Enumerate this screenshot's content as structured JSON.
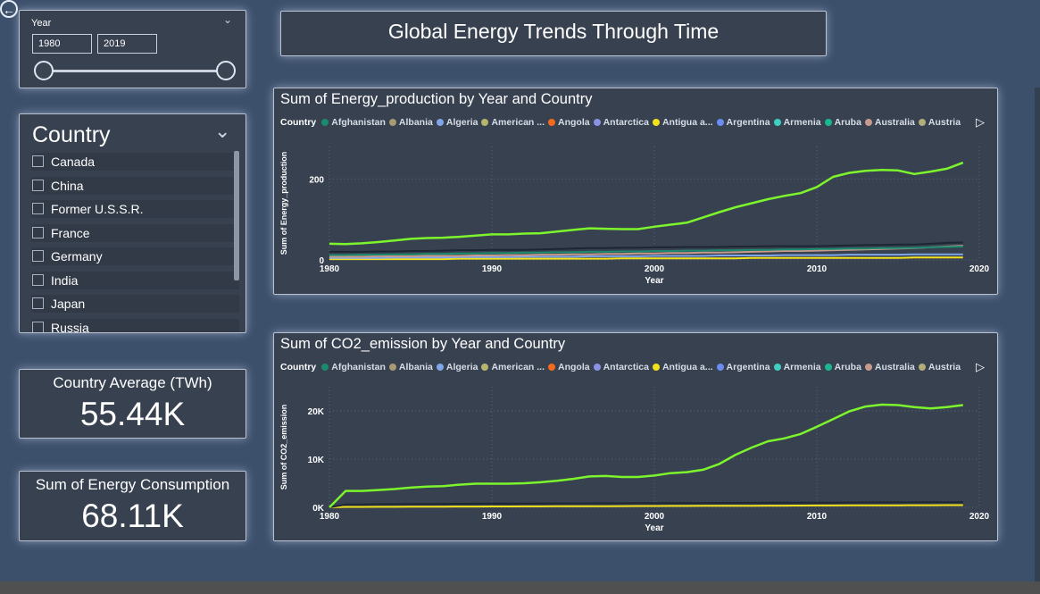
{
  "title": "Global Energy Trends Through Time",
  "back_icon": "arrow-left-circle",
  "year_slicer": {
    "label": "Year",
    "from": "1980",
    "to": "2019"
  },
  "country_slicer": {
    "label": "Country",
    "items": [
      {
        "label": "Canada"
      },
      {
        "label": "China"
      },
      {
        "label": "Former U.S.S.R."
      },
      {
        "label": "France"
      },
      {
        "label": "Germany"
      },
      {
        "label": "India"
      },
      {
        "label": "Japan"
      },
      {
        "label": "Russia"
      }
    ]
  },
  "cards": {
    "avg": {
      "label": "Country Average (TWh)",
      "value": "55.44K"
    },
    "consumption": {
      "label": "Sum of Energy Consumption",
      "value": "68.11K"
    }
  },
  "legend": {
    "header": "Country",
    "items": [
      {
        "label": "Afghanistan",
        "color": "#1c8a6e"
      },
      {
        "label": "Albania",
        "color": "#a89a72"
      },
      {
        "label": "Algeria",
        "color": "#7fa6e8"
      },
      {
        "label": "American ...",
        "color": "#b7b56b"
      },
      {
        "label": "Angola",
        "color": "#f26b1d"
      },
      {
        "label": "Antarctica",
        "color": "#8b92e6"
      },
      {
        "label": "Antigua a...",
        "color": "#f3e21a"
      },
      {
        "label": "Argentina",
        "color": "#6b8cf0"
      },
      {
        "label": "Armenia",
        "color": "#3fcfc2"
      },
      {
        "label": "Aruba",
        "color": "#1bb88f"
      },
      {
        "label": "Australia",
        "color": "#c79a8c"
      },
      {
        "label": "Austria",
        "color": "#b3ad7a"
      }
    ]
  },
  "chart_data": [
    {
      "type": "line",
      "title": "Sum of Energy_production by Year and Country",
      "xlabel": "Year",
      "ylabel": "Sum of Energy_production",
      "xlim": [
        1980,
        2020
      ],
      "ylim": [
        0,
        280
      ],
      "x_ticks": [
        "1980",
        "1990",
        "2000",
        "2010",
        "2020"
      ],
      "y_ticks": [
        "0",
        "200"
      ],
      "x": [
        1980,
        1981,
        1982,
        1983,
        1984,
        1985,
        1986,
        1987,
        1988,
        1989,
        1990,
        1991,
        1992,
        1993,
        1994,
        1995,
        1996,
        1997,
        1998,
        1999,
        2000,
        2001,
        2002,
        2003,
        2004,
        2005,
        2006,
        2007,
        2008,
        2009,
        2010,
        2011,
        2012,
        2013,
        2014,
        2015,
        2016,
        2017,
        2018,
        2019
      ],
      "series": [
        {
          "color": "#7df52c",
          "values": [
            40,
            39,
            41,
            44,
            48,
            52,
            54,
            55,
            57,
            60,
            63,
            63,
            65,
            66,
            70,
            74,
            78,
            77,
            76,
            76,
            82,
            87,
            92,
            105,
            118,
            130,
            140,
            150,
            158,
            165,
            180,
            205,
            215,
            220,
            222,
            221,
            212,
            218,
            225,
            240
          ]
        },
        {
          "color": "#1d2733",
          "values": [
            20,
            20,
            20,
            21,
            21,
            22,
            22,
            23,
            24,
            24,
            25,
            25,
            25,
            26,
            27,
            28,
            29,
            29,
            30,
            30,
            31,
            31,
            32,
            32,
            32,
            33,
            33,
            34,
            34,
            34,
            34,
            35,
            36,
            37,
            37,
            38,
            38,
            40,
            42,
            43
          ]
        },
        {
          "color": "#1c8a6e",
          "values": [
            12,
            12,
            13,
            13,
            14,
            14,
            15,
            15,
            16,
            16,
            17,
            17,
            18,
            18,
            19,
            19,
            20,
            20,
            21,
            21,
            22,
            22,
            23,
            23,
            24,
            24,
            25,
            25,
            26,
            26,
            27,
            27,
            28,
            28,
            29,
            29,
            30,
            31,
            32,
            33
          ]
        },
        {
          "color": "#c79a8c",
          "values": [
            8,
            8,
            8,
            9,
            9,
            9,
            10,
            10,
            10,
            11,
            11,
            12,
            12,
            13,
            13,
            14,
            14,
            15,
            15,
            16,
            16,
            17,
            17,
            18,
            18,
            19,
            20,
            21,
            22,
            22,
            23,
            24,
            25,
            26,
            27,
            28,
            29,
            31,
            33,
            35
          ]
        },
        {
          "color": "#7fa6e8",
          "values": [
            5,
            5,
            5,
            5,
            6,
            6,
            6,
            6,
            7,
            7,
            7,
            7,
            8,
            8,
            8,
            8,
            9,
            9,
            9,
            9,
            10,
            10,
            10,
            10,
            11,
            11,
            11,
            11,
            12,
            12,
            12,
            12,
            13,
            13,
            13,
            13,
            14,
            14,
            14,
            14
          ]
        },
        {
          "color": "#f3e21a",
          "values": [
            2,
            2,
            2,
            2,
            2,
            2,
            2,
            2,
            3,
            3,
            3,
            3,
            3,
            3,
            3,
            3,
            3,
            3,
            4,
            4,
            4,
            4,
            4,
            4,
            4,
            4,
            5,
            5,
            5,
            5,
            5,
            5,
            5,
            5,
            5,
            5,
            6,
            6,
            6,
            6
          ]
        }
      ]
    },
    {
      "type": "line",
      "title": "Sum of CO2_emission by Year and Country",
      "xlabel": "Year",
      "ylabel": "Sum of CO2_emission",
      "xlim": [
        1980,
        2020
      ],
      "ylim": [
        0,
        25000
      ],
      "x_ticks": [
        "1980",
        "1990",
        "2000",
        "2010",
        "2020"
      ],
      "y_ticks": [
        "0K",
        "10K",
        "20K"
      ],
      "x": [
        1980,
        1981,
        1982,
        1983,
        1984,
        1985,
        1986,
        1987,
        1988,
        1989,
        1990,
        1991,
        1992,
        1993,
        1994,
        1995,
        1996,
        1997,
        1998,
        1999,
        2000,
        2001,
        2002,
        2003,
        2004,
        2005,
        2006,
        2007,
        2008,
        2009,
        2010,
        2011,
        2012,
        2013,
        2014,
        2015,
        2016,
        2017,
        2018,
        2019
      ],
      "series": [
        {
          "color": "#7df52c",
          "values": [
            0,
            3400,
            3400,
            3600,
            3800,
            4100,
            4300,
            4400,
            4700,
            4900,
            4900,
            4900,
            5000,
            5200,
            5500,
            5900,
            6400,
            6500,
            6300,
            6300,
            6600,
            7100,
            7300,
            7800,
            9000,
            10900,
            12400,
            13700,
            14300,
            15200,
            16700,
            18300,
            19900,
            20900,
            21300,
            21200,
            20800,
            20500,
            20800,
            21200
          ]
        },
        {
          "color": "#1d2733",
          "values": [
            0,
            600,
            620,
            640,
            660,
            680,
            700,
            720,
            740,
            760,
            780,
            790,
            800,
            810,
            820,
            830,
            840,
            850,
            860,
            870,
            880,
            890,
            900,
            910,
            920,
            930,
            940,
            950,
            960,
            970,
            980,
            990,
            1000,
            1010,
            1020,
            1030,
            1040,
            1050,
            1060,
            1070
          ]
        },
        {
          "color": "#f3e21a",
          "values": [
            0,
            100,
            100,
            110,
            120,
            130,
            140,
            150,
            160,
            170,
            180,
            190,
            200,
            210,
            220,
            230,
            240,
            250,
            260,
            270,
            280,
            290,
            300,
            310,
            320,
            330,
            340,
            350,
            360,
            370,
            380,
            390,
            400,
            410,
            420,
            430,
            440,
            450,
            460,
            470
          ]
        }
      ]
    }
  ]
}
